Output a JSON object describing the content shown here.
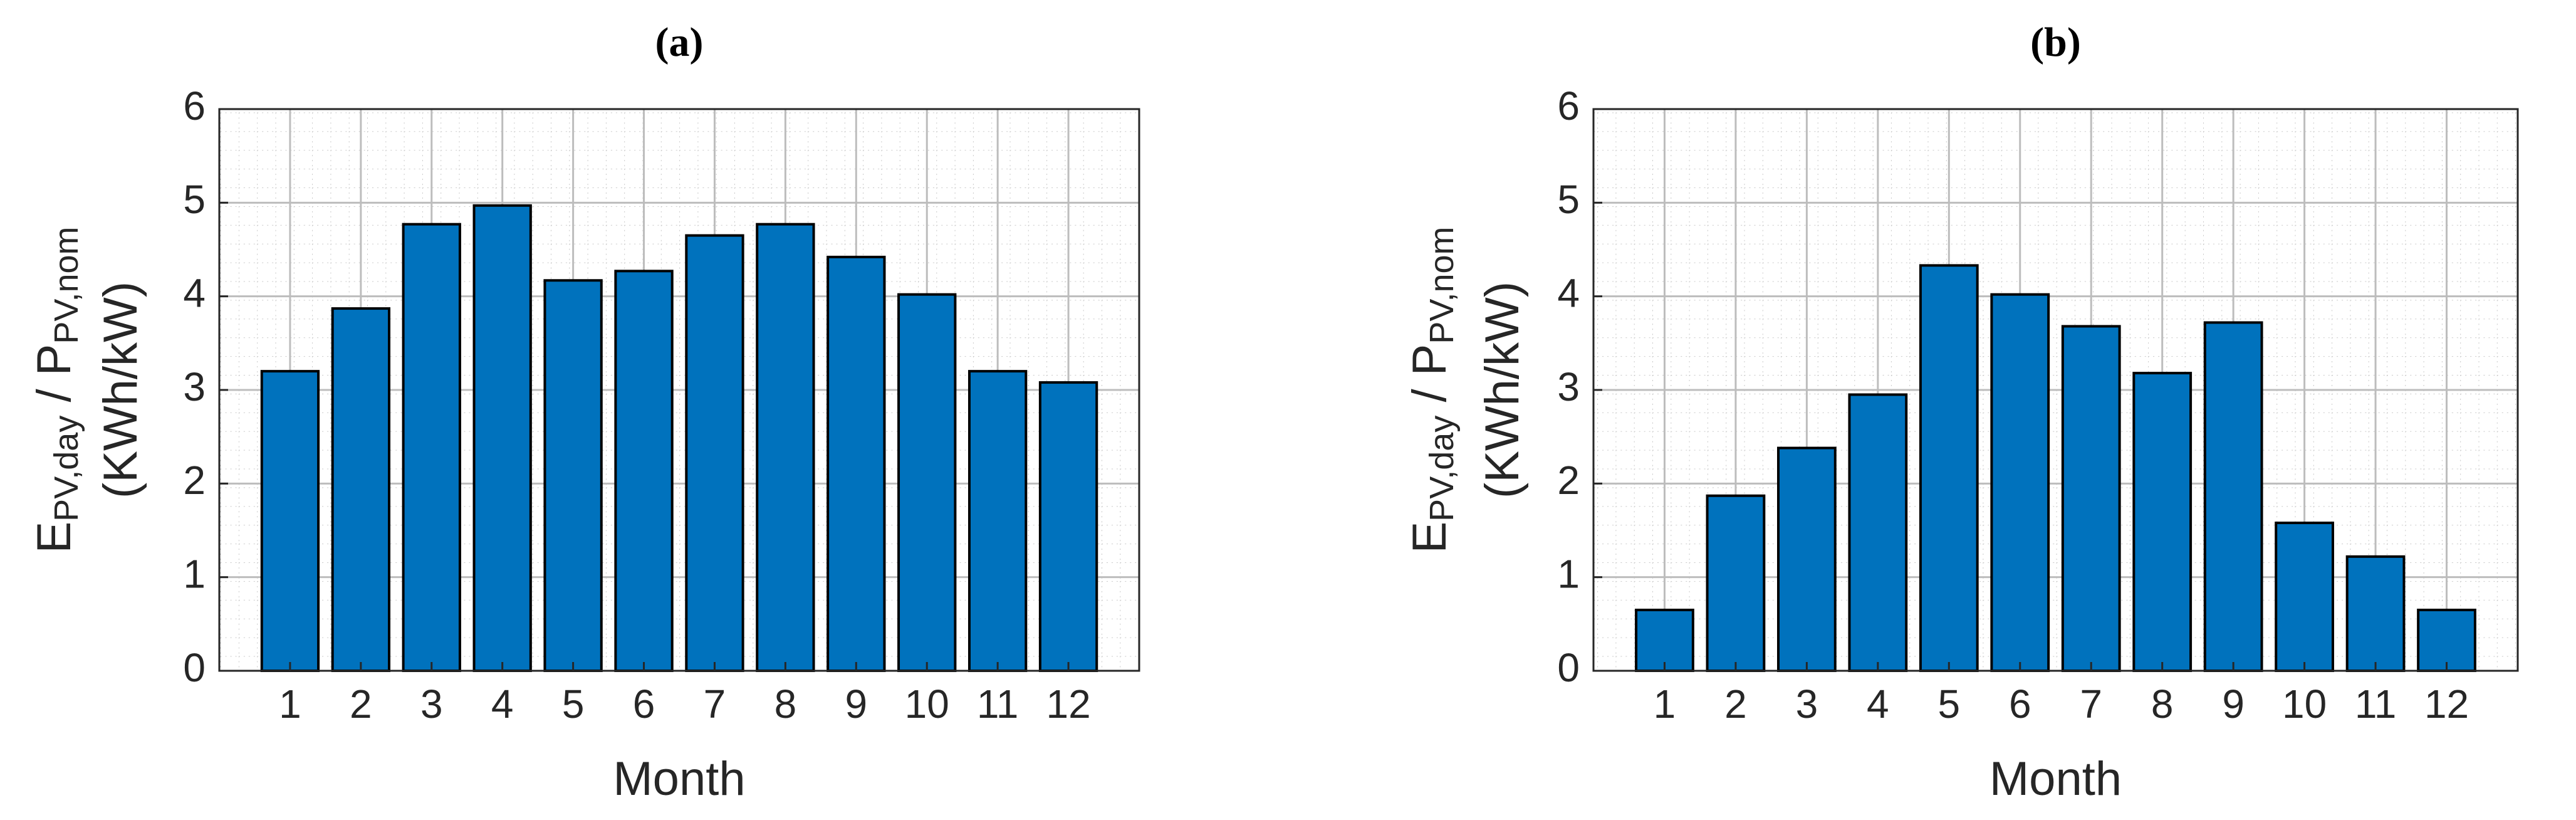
{
  "chart_data": [
    {
      "type": "bar",
      "title": "(a)",
      "xlabel": "Month",
      "ylabel": {
        "line1": [
          "E",
          "PV,day",
          " / P",
          "PV,nom"
        ],
        "line2": "(KWh/kW)"
      },
      "categories": [
        "1",
        "2",
        "3",
        "4",
        "5",
        "6",
        "7",
        "8",
        "9",
        "10",
        "11",
        "12"
      ],
      "values": [
        3.2,
        3.87,
        4.77,
        4.97,
        4.17,
        4.27,
        4.65,
        4.77,
        4.42,
        4.02,
        3.2,
        3.08
      ],
      "color": "#0072bd",
      "ylim": [
        0,
        6
      ],
      "yticks": [
        0,
        1,
        2,
        3,
        4,
        5,
        6
      ],
      "grid": true
    },
    {
      "type": "bar",
      "title": "(b)",
      "xlabel": "Month",
      "ylabel": {
        "line1": [
          "E",
          "PV,day",
          " / P",
          "PV,nom"
        ],
        "line2": "(KWh/kW)"
      },
      "categories": [
        "1",
        "2",
        "3",
        "4",
        "5",
        "6",
        "7",
        "8",
        "9",
        "10",
        "11",
        "12"
      ],
      "values": [
        0.65,
        1.87,
        2.38,
        2.95,
        4.33,
        4.02,
        3.68,
        3.18,
        3.72,
        1.58,
        1.22,
        0.65
      ],
      "color": "#0072bd",
      "ylim": [
        0,
        6
      ],
      "yticks": [
        0,
        1,
        2,
        3,
        4,
        5,
        6
      ],
      "grid": true
    }
  ]
}
